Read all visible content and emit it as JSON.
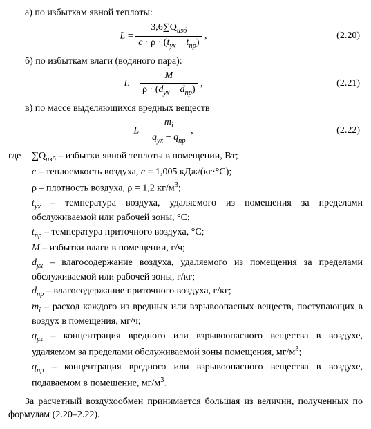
{
  "items": {
    "a": {
      "label": "а) по избыткам явной теплоты:"
    },
    "b": {
      "label": "б) по избыткам влаги (водяного пара):"
    },
    "c": {
      "label": "в) по массе выделяющихся вредных веществ"
    }
  },
  "eq": {
    "e220": {
      "num": "(2.20)",
      "lhs": "L",
      "top": "3,6∑Q",
      "top_sub": "изб",
      "bot_c": "c",
      "bot_rho": "ρ",
      "bot_t1": "t",
      "bot_t1_sub": "ух",
      "bot_t2": "t",
      "bot_t2_sub": "пр",
      "tail": " ,"
    },
    "e221": {
      "num": "(2.21)",
      "lhs": "L",
      "top": "M",
      "bot_rho": "ρ",
      "bot_d1": "d",
      "bot_d1_sub": "ух",
      "bot_d2": "d",
      "bot_d2_sub": "пр",
      "tail": " ,"
    },
    "e222": {
      "num": "(2.22)",
      "lhs": "L",
      "top": "m",
      "top_sub": "i",
      "bot_q1": "q",
      "bot_q1_sub": "ух",
      "bot_q2": "q",
      "bot_q2_sub": "пр",
      "tail": " ,"
    }
  },
  "defs": {
    "lead": "где",
    "Q": {
      "sym": "∑Q",
      "sym_sub": "изб",
      "text": " – избытки явной теплоты в помещении, Вт;"
    },
    "c": {
      "sym": "c",
      "text": " – теплоемкость воздуха, ",
      "eq_lhs": "c",
      "eq_rhs": " = 1,005 кДж/(кг·°С);"
    },
    "rho": {
      "sym": "ρ",
      "text": " – плотность воздуха, ρ = 1,2 кг/м",
      "sup": "3",
      "tail": ";"
    },
    "tux": {
      "sym": "t",
      "sym_sub": "ух",
      "text": " – температура воздуха, удаляемого из помещения за пределами обслуживаемой или рабочей зоны, °С;"
    },
    "tpr": {
      "sym": "t",
      "sym_sub": "пр",
      "text": " – температура приточного воздуха, °С;"
    },
    "M": {
      "sym": "M",
      "text": " – избытки влаги в помещении, г/ч;"
    },
    "dux": {
      "sym": "d",
      "sym_sub": "ух",
      "text": " – влагосодержание воздуха, удаляемого из помещения за пределами обслуживаемой или рабочей зоны, г/кг;"
    },
    "dpr": {
      "sym": "d",
      "sym_sub": "пр",
      "text": " – влагосодержание приточного воздуха, г/кг;"
    },
    "mi": {
      "sym": "m",
      "sym_sub": "i",
      "text": " – расход каждого из вредных или взрывоопасных веществ, поступающих в воздух в помещения, мг/ч;"
    },
    "qux": {
      "sym": "q",
      "sym_sub": "ух",
      "text": " – концентрация вредного или взрывоопасного вещества в воздухе, удаляемом за пределами обслуживаемой зоны помещения, мг/м",
      "sup": "3",
      "tail": ";"
    },
    "qpr": {
      "sym": "q",
      "sym_sub": "пр",
      "text": " – концентрация вредного или взрывоопасного вещества в воздухе, подаваемом в помещение, мг/м",
      "sup": "3",
      "tail": "."
    }
  },
  "final": "За расчетный воздухообмен принимается большая из величин, полученных по формулам (2.20–2.22)."
}
